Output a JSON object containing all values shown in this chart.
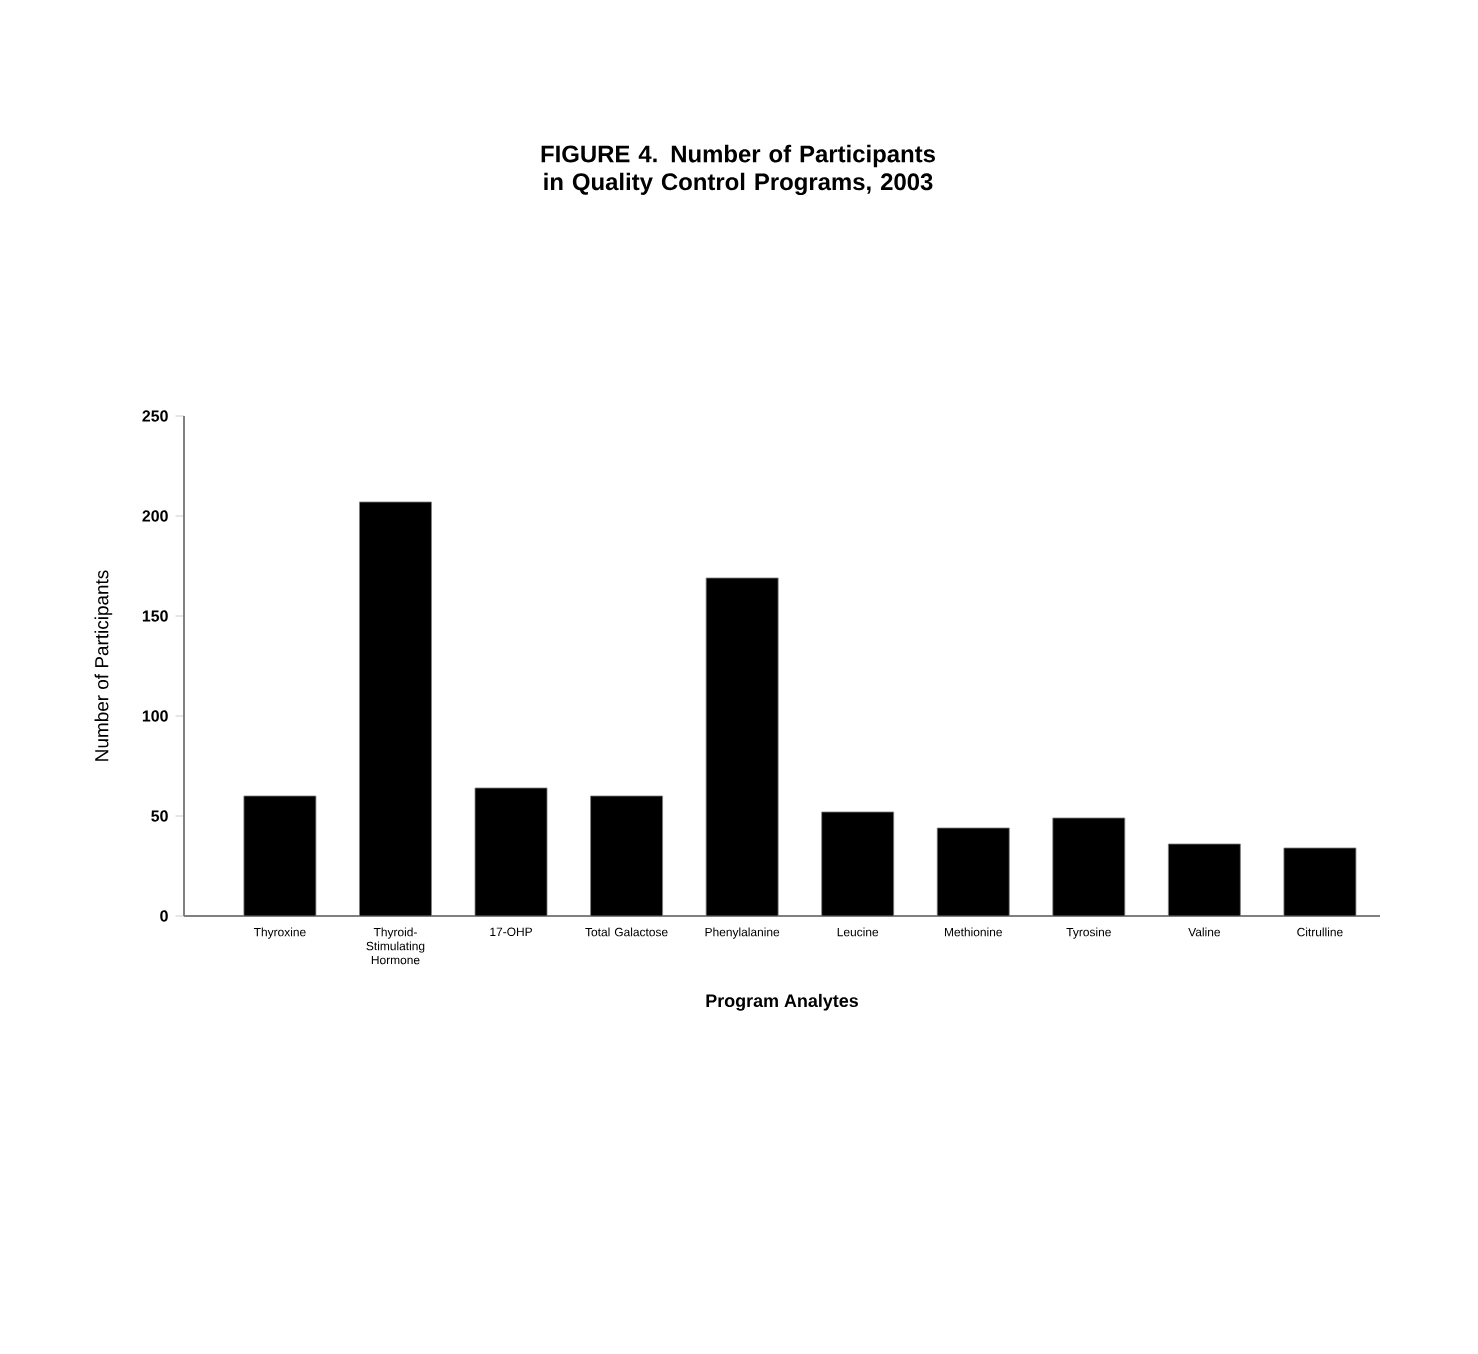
{
  "chart_data": {
    "type": "bar",
    "title": "FIGURE 4. Number of Participants in Quality Control Programs, 2003",
    "xlabel": "Program Analytes",
    "ylabel": "Number of Participants",
    "categories": [
      "Thyroxine",
      "Thyroid-Stimulating Hormone",
      "17-OHP",
      "Total Galactose",
      "Phenylalanine",
      "Leucine",
      "Methionine",
      "Tyrosine",
      "Valine",
      "Citrulline"
    ],
    "values": [
      60,
      207,
      64,
      60,
      169,
      52,
      44,
      49,
      36,
      34
    ],
    "color": "#000000",
    "ylim": [
      0,
      250
    ],
    "yticks": [
      0,
      50,
      100,
      150,
      200,
      250
    ],
    "grid": false
  }
}
